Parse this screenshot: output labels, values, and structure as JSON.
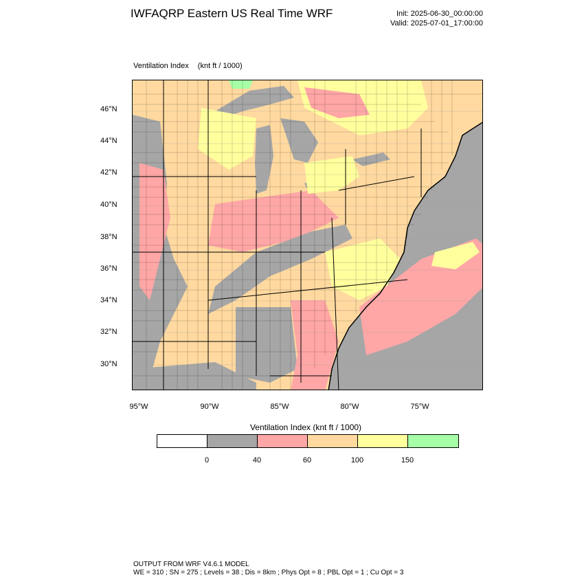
{
  "header": {
    "title": "IWFAQRP Eastern US Real Time WRF",
    "init": "Init: 2025-06-30_00:00:00",
    "valid": "Valid: 2025-07-01_17:00:00"
  },
  "panel": {
    "field": "Ventilation Index",
    "units": "(knt ft / 1000)"
  },
  "axes": {
    "lat_ticks": [
      "46°N",
      "44°N",
      "42°N",
      "40°N",
      "38°N",
      "36°N",
      "34°N",
      "32°N",
      "30°N"
    ],
    "lon_ticks": [
      "95°W",
      "90°W",
      "85°W",
      "80°W",
      "75°W"
    ]
  },
  "colorbar": {
    "title": "Ventilation Index  (knt ft / 1000)",
    "labels": [
      "0",
      "40",
      "60",
      "100",
      "150"
    ],
    "colors": [
      "#ffffff",
      "#a6a6a6",
      "#ffa6a6",
      "#ffd9a0",
      "#ffff9e",
      "#a6ffa6"
    ]
  },
  "palette": {
    "water": "#a6a6a6",
    "low": "#a6a6a6",
    "mid": "#ffa6a6",
    "high": "#ffd9a0",
    "vhigh": "#ffff9e",
    "extreme": "#a6ffa6"
  },
  "footer": {
    "line1": "OUTPUT FROM WRF V4.6.1 MODEL",
    "line2": "WE = 310 ; SN = 275 ; Levels = 38 ; Dis = 8km ; Phys Opt = 8 ; PBL Opt = 1 ; Cu Opt = 3"
  }
}
